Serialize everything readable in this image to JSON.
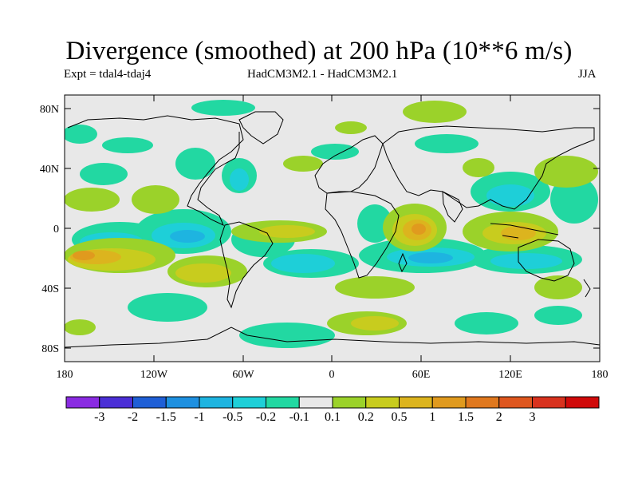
{
  "title": "Divergence (smoothed) at 200 hPa (10**6 m/s)",
  "expt_label": "Expt = tdal4-tdaj4",
  "models_label": "HadCM3M2.1 - HadCM3M2.1",
  "season": "JJA",
  "y_ticks": [
    "80N",
    "40N",
    "0",
    "40S",
    "80S"
  ],
  "x_ticks": [
    "180",
    "120W",
    "60W",
    "0",
    "60E",
    "120E",
    "180"
  ],
  "colorbar": {
    "colors": [
      "#8a2be2",
      "#4b2fd6",
      "#1f5fd6",
      "#1e90e0",
      "#1eb4e0",
      "#1ecfd8",
      "#22d8a2",
      "#e8e8e8",
      "#9bd22a",
      "#c8cc1e",
      "#dcb41e",
      "#e09a1e",
      "#e0781e",
      "#de561e",
      "#d8321e",
      "#d00a0a"
    ],
    "labels": [
      "-3",
      "-2",
      "-1.5",
      "-1",
      "-0.5",
      "-0.2",
      "-0.1",
      "0.1",
      "0.2",
      "0.5",
      "1",
      "1.5",
      "2",
      "3"
    ]
  }
}
